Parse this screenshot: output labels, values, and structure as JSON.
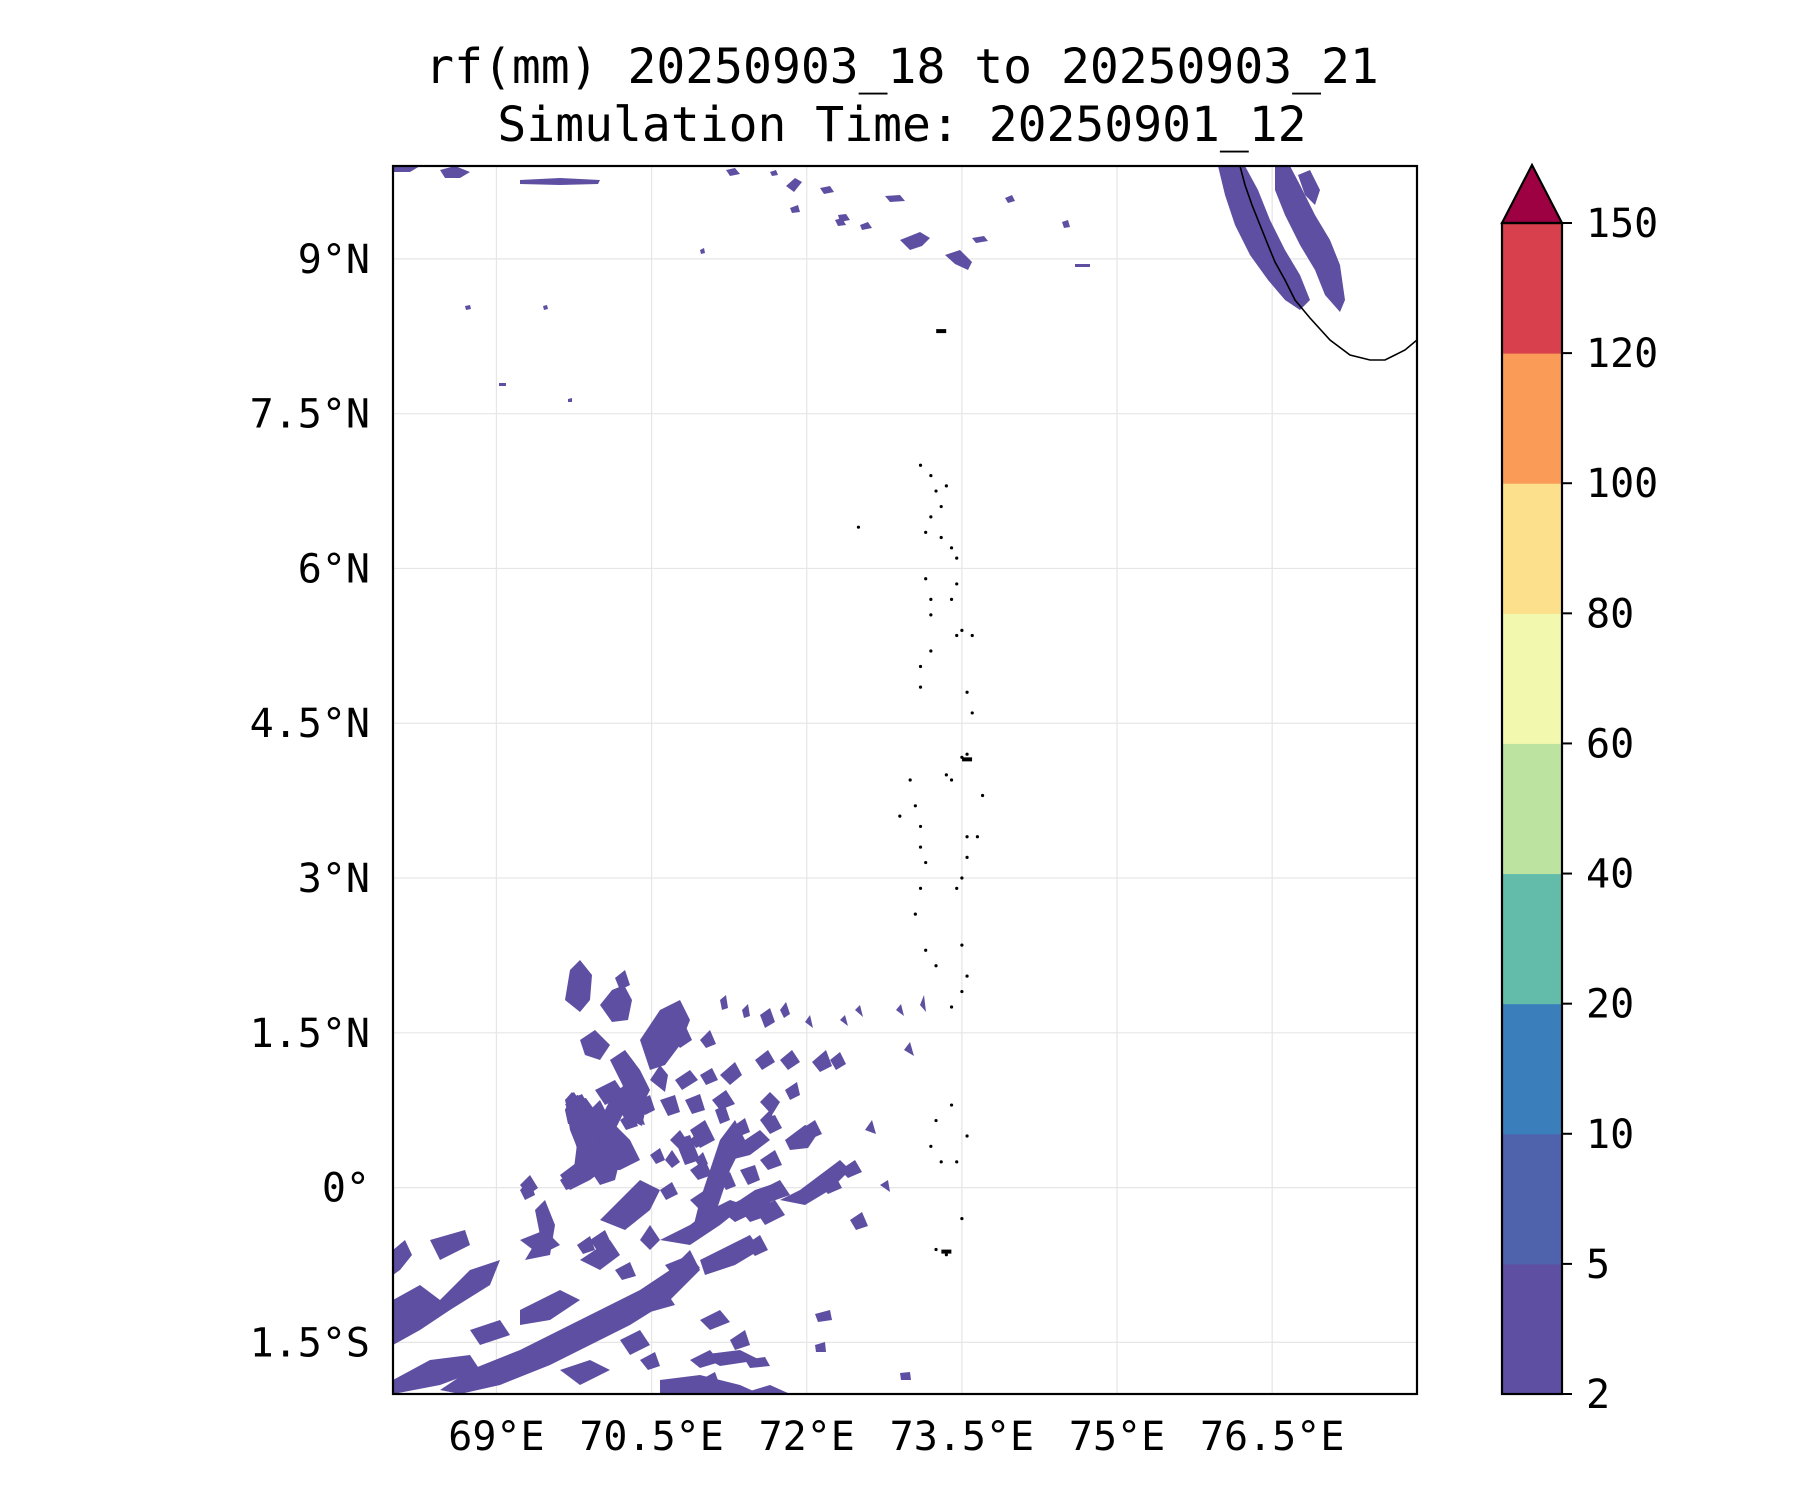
{
  "title": {
    "line1": "rf(mm) 20250903_18 to 20250903_21",
    "line2": "Simulation Time: 20250901_12"
  },
  "map": {
    "lon_range": [
      68.0,
      77.9
    ],
    "lat_range": [
      -2.0,
      9.9
    ],
    "lon_ticks": [
      {
        "value": 69.0,
        "label": "69°E"
      },
      {
        "value": 70.5,
        "label": "70.5°E"
      },
      {
        "value": 72.0,
        "label": "72°E"
      },
      {
        "value": 73.5,
        "label": "73.5°E"
      },
      {
        "value": 75.0,
        "label": "75°E"
      },
      {
        "value": 76.5,
        "label": "76.5°E"
      }
    ],
    "lat_ticks": [
      {
        "value": 9.0,
        "label": "9°N"
      },
      {
        "value": 7.5,
        "label": "7.5°N"
      },
      {
        "value": 6.0,
        "label": "6°N"
      },
      {
        "value": 4.5,
        "label": "4.5°N"
      },
      {
        "value": 3.0,
        "label": "3°N"
      },
      {
        "value": 1.5,
        "label": "1.5°N"
      },
      {
        "value": 0.0,
        "label": "0°"
      },
      {
        "value": -1.5,
        "label": "1.5°S"
      }
    ],
    "grid": true,
    "rain_color": "#5e4fa2"
  },
  "colorbar": {
    "levels": [
      {
        "label": "2",
        "color": "#5e4fa2"
      },
      {
        "label": "5",
        "color": "#4f63ad"
      },
      {
        "label": "10",
        "color": "#3a7fbc"
      },
      {
        "label": "20",
        "color": "#63bcaa"
      },
      {
        "label": "40",
        "color": "#bde3a0"
      },
      {
        "label": "60",
        "color": "#f2f8ae"
      },
      {
        "label": "80",
        "color": "#fde08b"
      },
      {
        "label": "100",
        "color": "#fa9b58"
      },
      {
        "label": "120",
        "color": "#d8404e"
      },
      {
        "label": "150",
        "color": ""
      }
    ],
    "extend_color": "#9e0142"
  }
}
